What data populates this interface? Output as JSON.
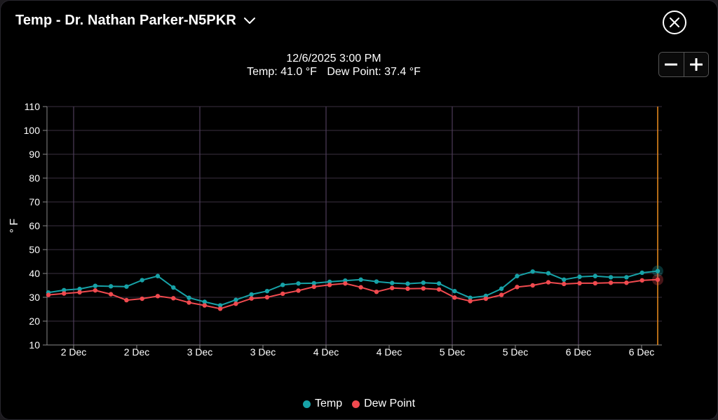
{
  "header": {
    "title": "Temp - Dr. Nathan Parker-N5PKR",
    "dropdown_icon": "chevron-down-icon",
    "close_icon": "close-circle-icon"
  },
  "readout": {
    "datetime": "12/6/2025 3:00 PM",
    "temp": "Temp: 41.0 °F",
    "dew_point": "Dew Point: 37.4 °F"
  },
  "zoom": {
    "minus_icon": "minus-icon",
    "plus_icon": "plus-icon"
  },
  "colors": {
    "temp": "#17a2a7",
    "dew_point": "#f04a4f",
    "cursor": "#f0901f",
    "grid": "#3a3140",
    "day_grid": "#4e3d5a"
  },
  "chart_data": {
    "type": "line",
    "ylabel": "° F",
    "ylim": [
      10,
      110
    ],
    "yticks": [
      10,
      20,
      30,
      40,
      50,
      60,
      70,
      80,
      90,
      100,
      110
    ],
    "xticks": [
      "2 Dec",
      "2 Dec",
      "3 Dec",
      "3 Dec",
      "4 Dec",
      "4 Dec",
      "5 Dec",
      "5 Dec",
      "6 Dec",
      "6 Dec"
    ],
    "legend_position": "bottom-center",
    "series": [
      {
        "name": "Temp",
        "values": [
          32.0,
          33.0,
          33.5,
          34.8,
          34.6,
          34.5,
          37.2,
          38.9,
          34.1,
          29.8,
          28.1,
          26.6,
          28.9,
          31.2,
          32.6,
          35.2,
          35.8,
          35.9,
          36.5,
          37.0,
          37.4,
          36.6,
          36.0,
          35.7,
          36.1,
          35.8,
          32.6,
          29.8,
          30.6,
          33.6,
          38.9,
          40.8,
          40.1,
          37.4,
          38.6,
          38.9,
          38.4,
          38.4,
          40.3,
          41.0
        ]
      },
      {
        "name": "Dew Point",
        "values": [
          31.0,
          31.6,
          32.1,
          32.9,
          31.3,
          28.8,
          29.4,
          30.5,
          29.6,
          27.8,
          26.6,
          25.2,
          27.3,
          29.5,
          30.0,
          31.5,
          32.8,
          34.4,
          35.2,
          35.8,
          34.2,
          32.3,
          33.9,
          33.6,
          33.7,
          33.3,
          29.9,
          28.4,
          29.4,
          31.0,
          34.3,
          35.0,
          36.3,
          35.6,
          35.9,
          35.9,
          36.1,
          36.1,
          37.1,
          37.4
        ]
      }
    ]
  }
}
